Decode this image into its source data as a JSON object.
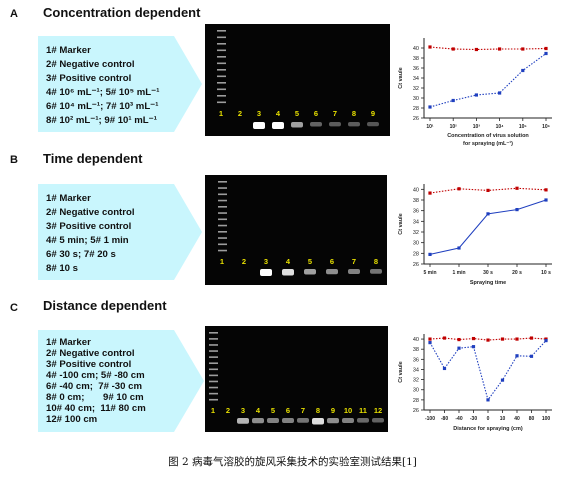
{
  "caption": "图 2  病毒气溶胶的旋风采集技术的实验室测试结果[1]",
  "panels": [
    {
      "letter": "A",
      "title": "Concentration dependent",
      "legend": [
        "1# Marker",
        "2# Negative control",
        "3# Positive control",
        "4# 10⁶ mL⁻¹; 5# 10⁵ mL⁻¹",
        "6# 10⁴ mL⁻¹; 7# 10³ mL⁻¹",
        "8# 10² mL⁻¹; 9# 10¹ mL⁻¹"
      ],
      "lane_labels": [
        "1",
        "2",
        "3",
        "4",
        "5",
        "6",
        "7",
        "8",
        "9"
      ]
    },
    {
      "letter": "B",
      "title": "Time dependent",
      "legend": [
        "1# Marker",
        "2# Negative control",
        "3# Positive control",
        "4# 5 min; 5# 1 min",
        "6# 30 s; 7# 20 s",
        "8# 10 s"
      ],
      "lane_labels": [
        "1",
        "2",
        "3",
        "4",
        "5",
        "6",
        "7",
        "8"
      ]
    },
    {
      "letter": "C",
      "title": "Distance dependent",
      "legend": [
        "1# Marker",
        "2# Negative control",
        "3# Positive control",
        "4# -100 cm; 5# -80 cm",
        "6# -40 cm;  7# -30 cm",
        "8# 0 cm;       9# 10 cm",
        "10# 40 cm;  11# 80 cm",
        "12# 100 cm"
      ],
      "lane_labels": [
        "1",
        "2",
        "3",
        "4",
        "5",
        "6",
        "7",
        "8",
        "9",
        "10",
        "11",
        "12"
      ]
    }
  ],
  "chart_data": [
    {
      "type": "line",
      "ylabel": "Ct   vaule",
      "xlabel": "Concentration of virus solution for spraying (mL⁻¹)",
      "categories": [
        "10¹",
        "10²",
        "10³",
        "10⁴",
        "10⁵",
        "10⁶"
      ],
      "ylim": [
        26,
        42
      ],
      "yticks": [
        26,
        28,
        30,
        32,
        34,
        36,
        38,
        40
      ],
      "series": [
        {
          "color": "#c00000",
          "style": "dotted",
          "marker": "square",
          "values": [
            40.2,
            39.8,
            39.7,
            39.8,
            39.8,
            39.9
          ]
        },
        {
          "color": "#1f3fbf",
          "style": "dotted",
          "marker": "square",
          "values": [
            28.2,
            29.5,
            30.6,
            31.0,
            35.5,
            38.9
          ]
        }
      ]
    },
    {
      "type": "line",
      "ylabel": "Ct   vaule",
      "xlabel": "Spraying time",
      "categories": [
        "5 min",
        "1 min",
        "30 s",
        "20 s",
        "10 s"
      ],
      "ylim": [
        26,
        41
      ],
      "yticks": [
        26,
        28,
        30,
        32,
        34,
        36,
        38,
        40
      ],
      "series": [
        {
          "color": "#c00000",
          "style": "dotted",
          "marker": "square",
          "values": [
            39.3,
            40.1,
            39.8,
            40.2,
            39.9
          ]
        },
        {
          "color": "#1f3fbf",
          "style": "solid",
          "marker": "square",
          "values": [
            27.8,
            29.0,
            35.4,
            36.2,
            38.0
          ]
        }
      ]
    },
    {
      "type": "line",
      "ylabel": "Ct   vaule",
      "xlabel": "Distance for spraying (cm)",
      "categories": [
        "-100",
        "-80",
        "-40",
        "-30",
        "0",
        "10",
        "40",
        "80",
        "100"
      ],
      "ylim": [
        26,
        41
      ],
      "yticks": [
        26,
        28,
        30,
        32,
        34,
        36,
        38,
        40
      ],
      "series": [
        {
          "color": "#c00000",
          "style": "dotted",
          "marker": "square",
          "values": [
            40.0,
            40.2,
            39.9,
            40.1,
            39.8,
            40.0,
            40.0,
            40.2,
            40.0
          ]
        },
        {
          "color": "#1f3fbf",
          "style": "dotted",
          "marker": "square",
          "values": [
            39.3,
            34.2,
            38.2,
            38.5,
            28.0,
            31.9,
            36.7,
            36.6,
            39.7
          ]
        }
      ]
    }
  ]
}
